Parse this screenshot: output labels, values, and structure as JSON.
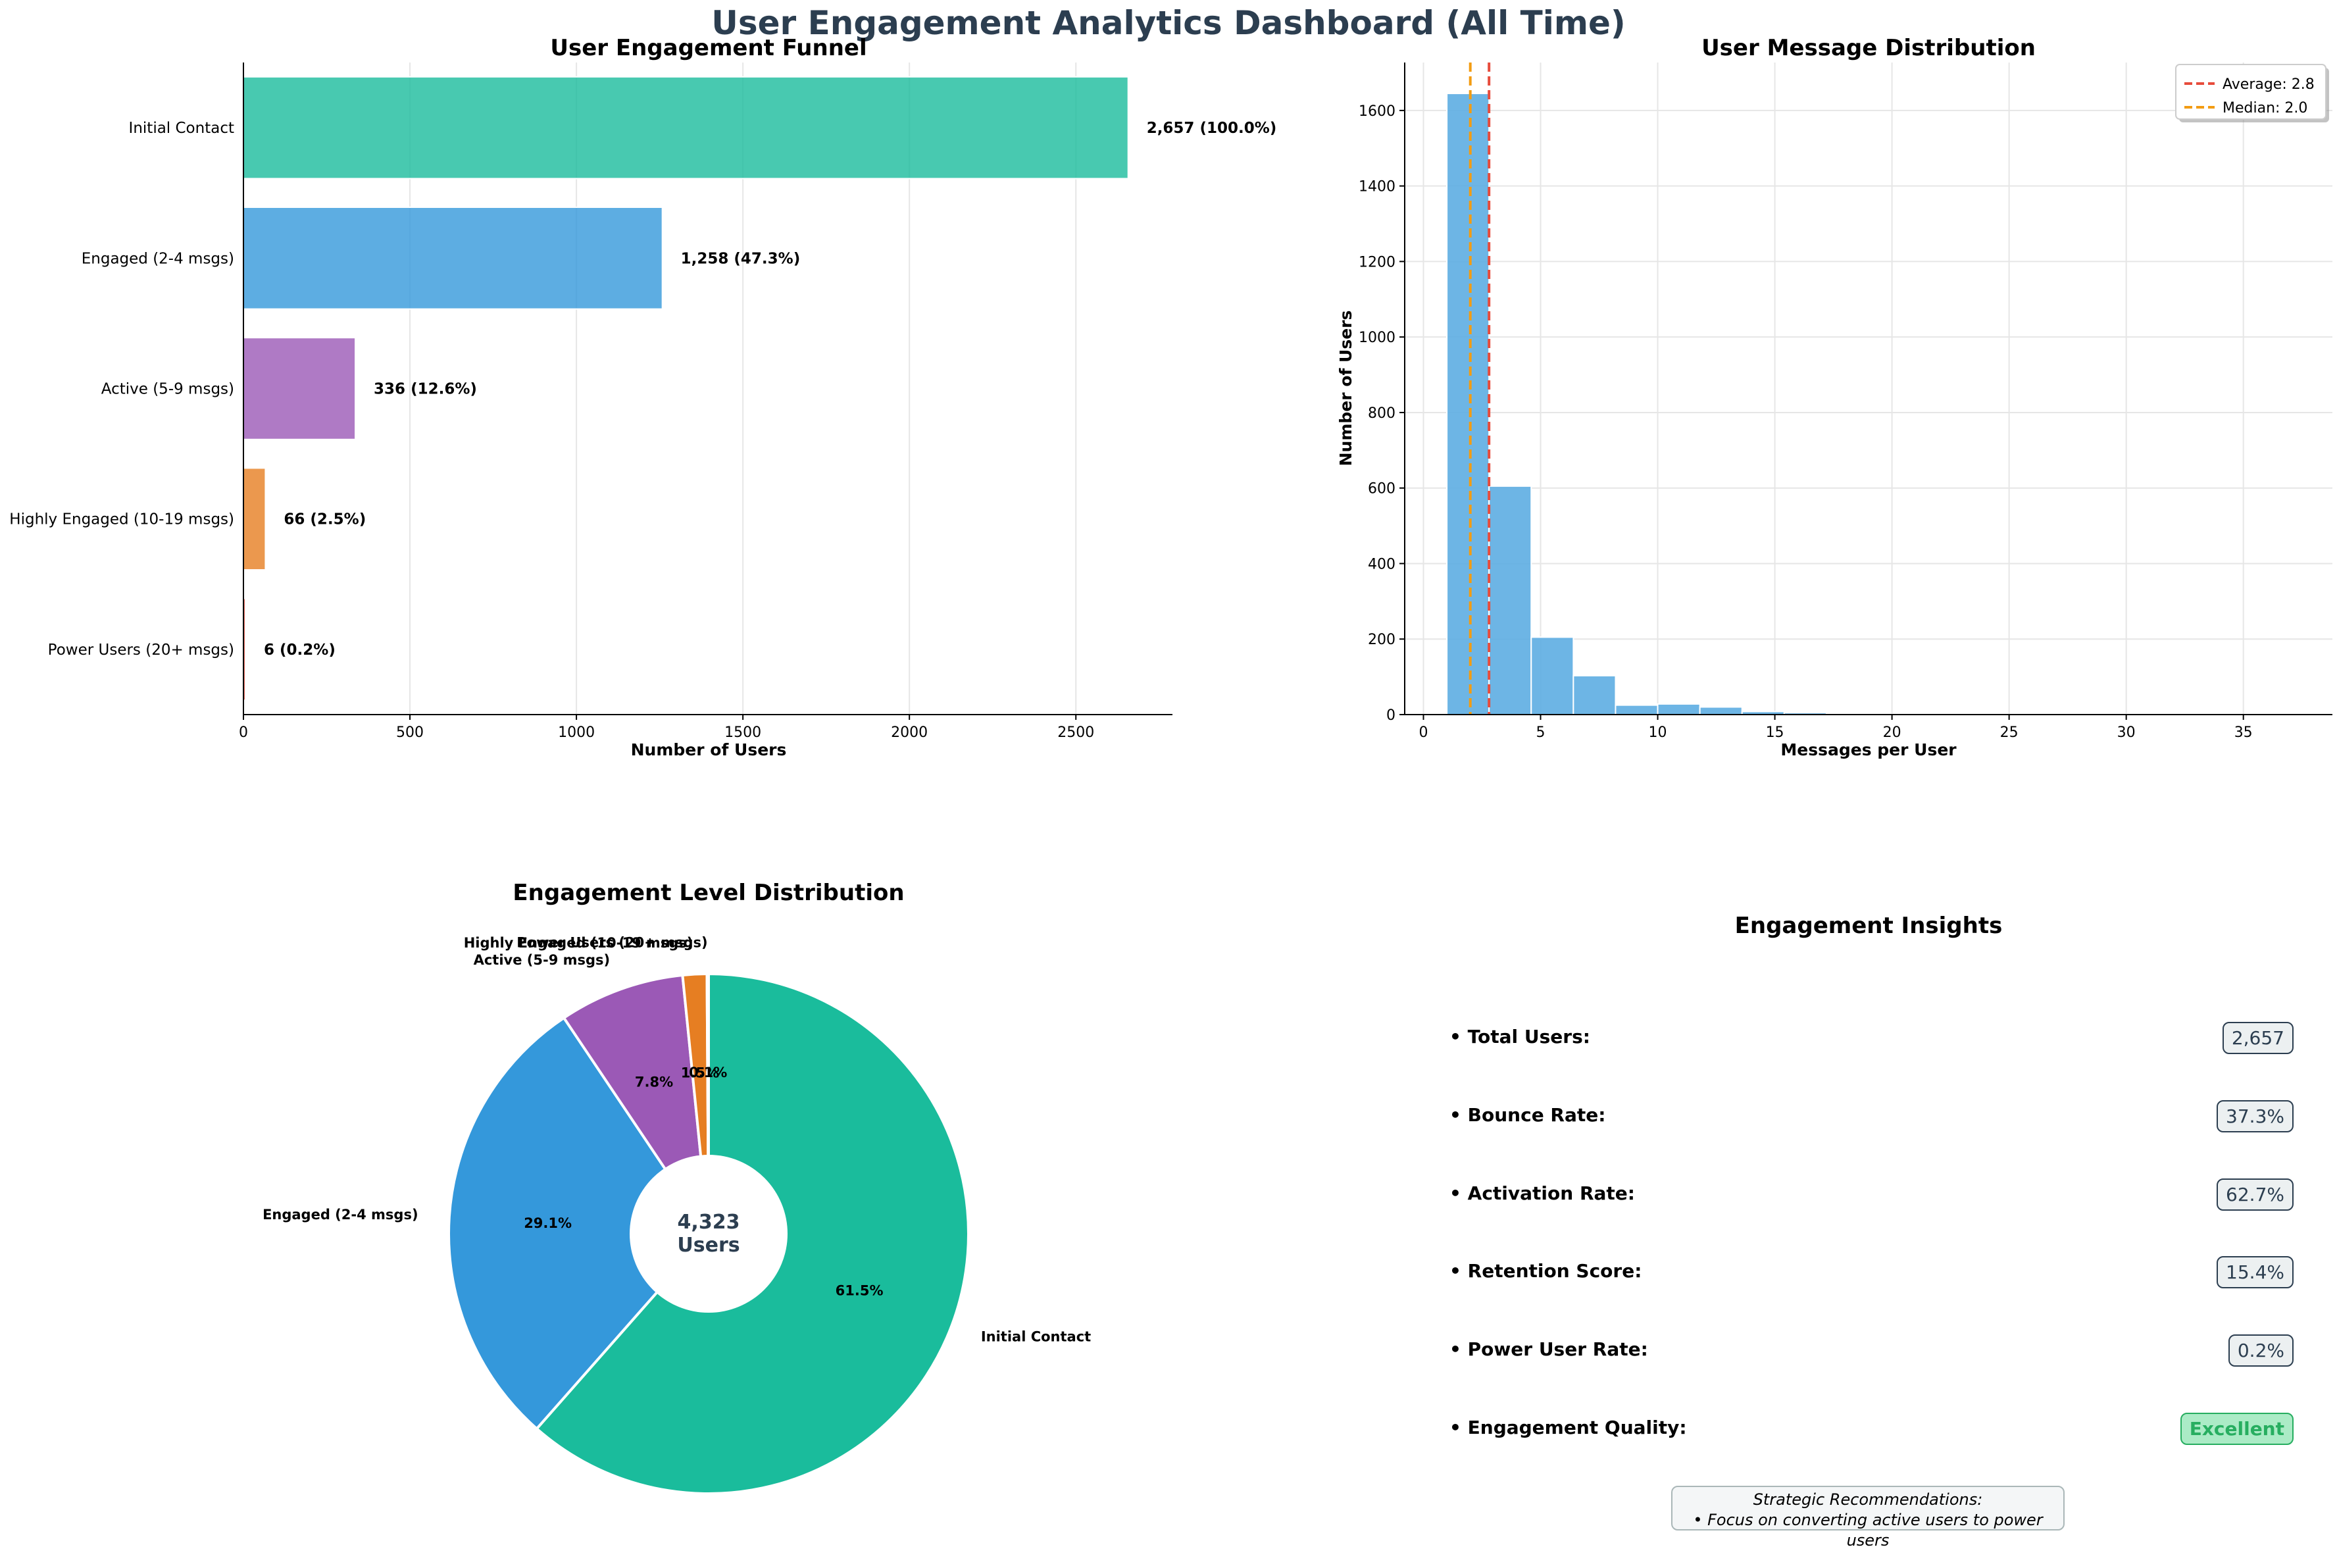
{
  "title": "User Engagement Analytics Dashboard (All Time)",
  "colors": {
    "title": "#2c3e50",
    "funnel": [
      "#1abc9c",
      "#3498db",
      "#9b59b6",
      "#e67e22",
      "#e74c3c"
    ],
    "hist": "#5dade2",
    "average_line": "#e74c3c",
    "median_line": "#f39c12"
  },
  "chart_data": [
    {
      "type": "bar",
      "orientation": "horizontal",
      "title": "User Engagement Funnel",
      "xlabel": "Number of Users",
      "ylabel": "",
      "categories": [
        "Initial Contact",
        "Engaged (2-4 msgs)",
        "Active (5-9 msgs)",
        "Highly Engaged (10-19 msgs)",
        "Power Users (20+ msgs)"
      ],
      "values": [
        2657,
        1258,
        336,
        66,
        6
      ],
      "data_labels": [
        "2,657 (100.0%)",
        "1,258 (47.3%)",
        "336 (12.6%)",
        "66 (2.5%)",
        "6 (0.2%)"
      ],
      "xlim": [
        0,
        2790
      ],
      "xticks": [
        0,
        500,
        1000,
        1500,
        2000,
        2500
      ],
      "grid": "x"
    },
    {
      "type": "bar",
      "subtype": "histogram",
      "title": "User Message Distribution",
      "xlabel": "Messages per User",
      "ylabel": "Number of Users",
      "bins": [
        {
          "x0": 1.0,
          "x1": 2.8,
          "count": 1645
        },
        {
          "x0": 2.8,
          "x1": 4.6,
          "count": 605
        },
        {
          "x0": 4.6,
          "x1": 6.4,
          "count": 205
        },
        {
          "x0": 6.4,
          "x1": 8.2,
          "count": 103
        },
        {
          "x0": 8.2,
          "x1": 10.0,
          "count": 25
        },
        {
          "x0": 10.0,
          "x1": 11.8,
          "count": 28
        },
        {
          "x0": 11.8,
          "x1": 13.6,
          "count": 20
        },
        {
          "x0": 13.6,
          "x1": 15.4,
          "count": 8
        },
        {
          "x0": 15.4,
          "x1": 17.2,
          "count": 5
        },
        {
          "x0": 17.2,
          "x1": 19.0,
          "count": 2
        },
        {
          "x0": 19.0,
          "x1": 20.8,
          "count": 1
        },
        {
          "x0": 20.8,
          "x1": 22.6,
          "count": 1
        },
        {
          "x0": 22.6,
          "x1": 24.4,
          "count": 1
        },
        {
          "x0": 24.4,
          "x1": 26.2,
          "count": 0
        },
        {
          "x0": 26.2,
          "x1": 28.0,
          "count": 1
        },
        {
          "x0": 28.0,
          "x1": 29.8,
          "count": 0
        },
        {
          "x0": 29.8,
          "x1": 31.6,
          "count": 1
        },
        {
          "x0": 31.6,
          "x1": 33.4,
          "count": 0
        },
        {
          "x0": 33.4,
          "x1": 35.2,
          "count": 0
        },
        {
          "x0": 35.2,
          "x1": 37.0,
          "count": 1
        }
      ],
      "xlim": [
        -0.8,
        38.8
      ],
      "ylim": [
        0,
        1727
      ],
      "xticks": [
        0,
        5,
        10,
        15,
        20,
        25,
        30,
        35
      ],
      "yticks": [
        0,
        200,
        400,
        600,
        800,
        1000,
        1200,
        1400,
        1600
      ],
      "vlines": [
        {
          "name": "Average: 2.8",
          "x": 2.8
        },
        {
          "name": "Median: 2.0",
          "x": 2.0
        }
      ],
      "legend": "top-right",
      "grid": true
    },
    {
      "type": "pie",
      "subtype": "donut",
      "title": "Engagement Level Distribution",
      "center_value": "4,323",
      "center_label": "Users",
      "slices": [
        {
          "label": "Initial Contact",
          "value": 61.5,
          "pct_label": "61.5%"
        },
        {
          "label": "Engaged (2-4 msgs)",
          "value": 29.1,
          "pct_label": "29.1%"
        },
        {
          "label": "Active (5-9 msgs)",
          "value": 7.8,
          "pct_label": "7.8%"
        },
        {
          "label": "Highly Engaged (10-19 msgs)",
          "value": 1.5,
          "pct_label": "1.5%"
        },
        {
          "label": "Power Users (20+ msgs)",
          "value": 0.1,
          "pct_label": "0.1%"
        }
      ]
    }
  ],
  "insights": {
    "title": "Engagement Insights",
    "items": [
      {
        "label": "• Total Users:",
        "value": "2,657"
      },
      {
        "label": "• Bounce Rate:",
        "value": "37.3%"
      },
      {
        "label": "• Activation Rate:",
        "value": "62.7%"
      },
      {
        "label": "• Retention Score:",
        "value": "15.4%"
      },
      {
        "label": "• Power User Rate:",
        "value": "0.2%"
      },
      {
        "label": "• Engagement Quality:",
        "value": "Excellent"
      }
    ],
    "recommendation_title": "Strategic Recommendations:",
    "recommendation_text": "• Focus on converting active users to power users"
  }
}
